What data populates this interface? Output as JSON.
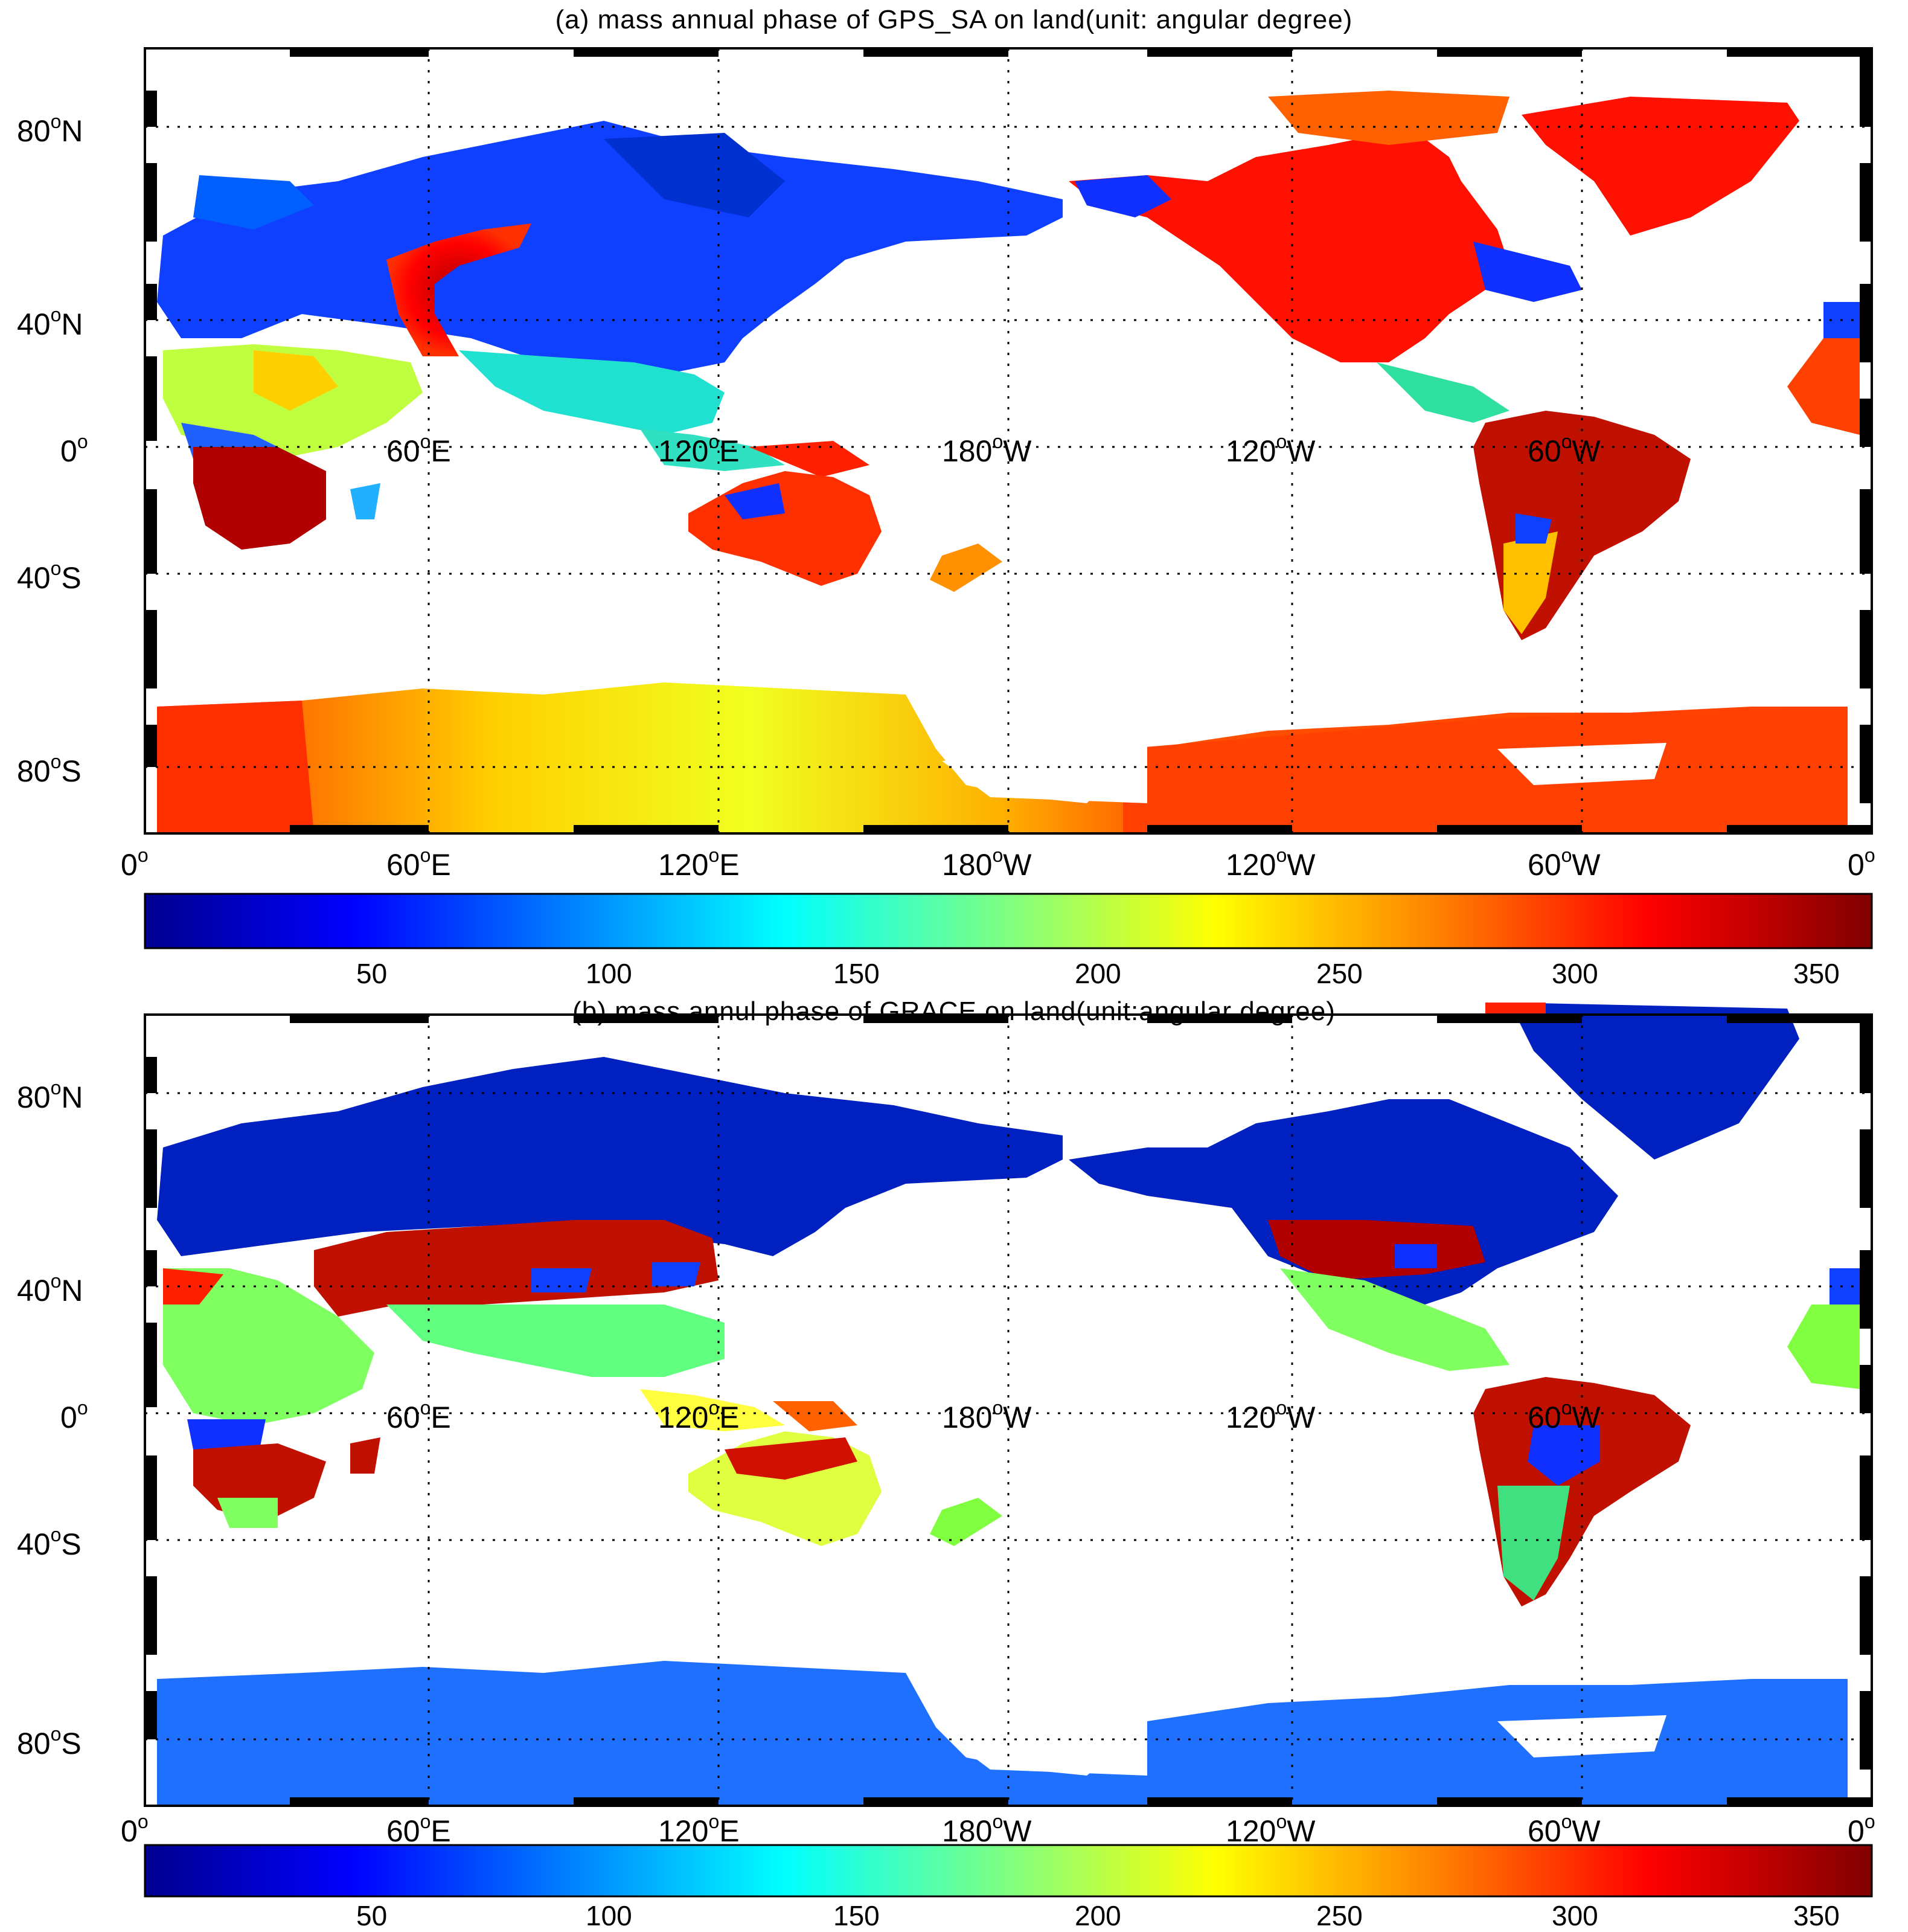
{
  "panels": [
    {
      "id": "a",
      "title": "(a) mass annual phase of GPS_SA on land(unit: angular degree)",
      "lat_labels": [
        "80",
        "40",
        "0",
        "40",
        "80"
      ],
      "lat_hemis": [
        "N",
        "N",
        "",
        "S",
        "S"
      ],
      "lon_labels": [
        "0",
        "60",
        "120",
        "180",
        "120",
        "60",
        "0"
      ],
      "lon_hemis": [
        "",
        "E",
        "E",
        "W",
        "W",
        "W",
        ""
      ],
      "colorbar_ticks": [
        "50",
        "100",
        "150",
        "200",
        "250",
        "300",
        "350"
      ]
    },
    {
      "id": "b",
      "title": "(b) mass annul phase of GRACE on land(unit:angular degree)",
      "lat_labels": [
        "80",
        "40",
        "0",
        "40",
        "80"
      ],
      "lat_hemis": [
        "N",
        "N",
        "",
        "S",
        "S"
      ],
      "lon_labels": [
        "0",
        "60",
        "120",
        "180",
        "120",
        "60",
        "0"
      ],
      "lon_hemis": [
        "",
        "E",
        "E",
        "W",
        "W",
        "W",
        ""
      ],
      "colorbar_ticks": [
        "50",
        "100",
        "150",
        "200",
        "250",
        "300",
        "350"
      ]
    }
  ],
  "colormap": [
    "#00008f",
    "#0000ff",
    "#0080ff",
    "#00ffff",
    "#80ff80",
    "#ffff00",
    "#ff8000",
    "#ff0000",
    "#800000"
  ],
  "colorbar_range": [
    0,
    360
  ],
  "grid": "dotted"
}
